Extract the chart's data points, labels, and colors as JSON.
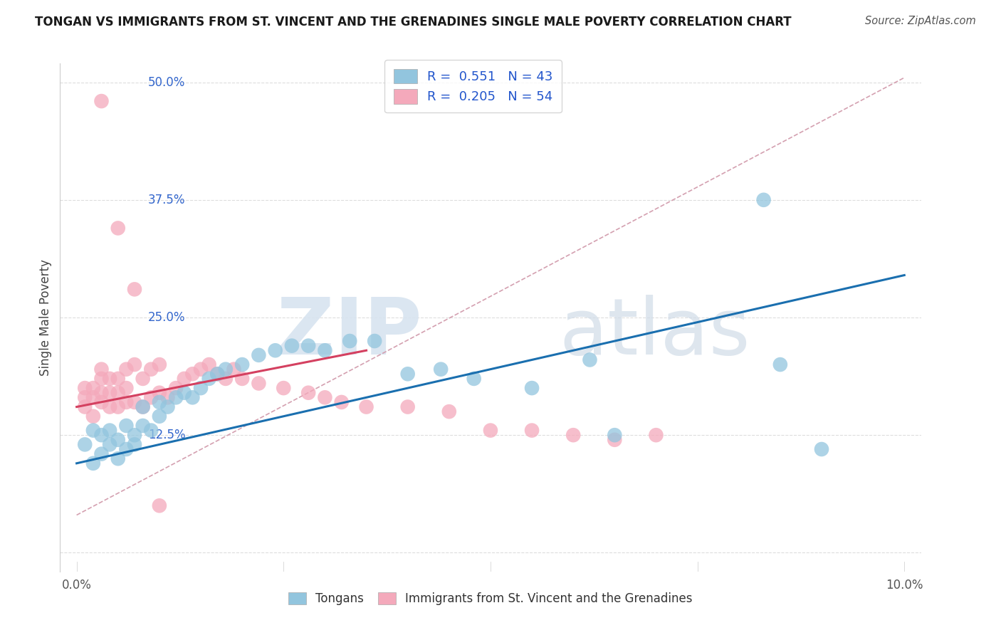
{
  "title": "TONGAN VS IMMIGRANTS FROM ST. VINCENT AND THE GRENADINES SINGLE MALE POVERTY CORRELATION CHART",
  "source": "Source: ZipAtlas.com",
  "ylabel": "Single Male Poverty",
  "y_ticks": [
    0.0,
    0.125,
    0.25,
    0.375,
    0.5
  ],
  "y_tick_labels": [
    "",
    "12.5%",
    "25.0%",
    "37.5%",
    "50.0%"
  ],
  "x_tick_labels": [
    "0.0%",
    "10.0%"
  ],
  "x_range": [
    0.0,
    0.1
  ],
  "y_range": [
    -0.02,
    0.52
  ],
  "legend1_label": "R =  0.551   N = 43",
  "legend2_label": "R =  0.205   N = 54",
  "legend_bottom1": "Tongans",
  "legend_bottom2": "Immigrants from St. Vincent and the Grenadines",
  "watermark_zip": "ZIP",
  "watermark_atlas": "atlas",
  "blue_color": "#92c5de",
  "pink_color": "#f4a9bb",
  "blue_line_color": "#1a6faf",
  "pink_line_color": "#d44060",
  "dashed_line_color": "#d4a0b0",
  "grid_color": "#dddddd",
  "blue_line_x": [
    0.0,
    0.1
  ],
  "blue_line_y": [
    0.095,
    0.295
  ],
  "pink_line_x": [
    0.0,
    0.035
  ],
  "pink_line_y": [
    0.155,
    0.215
  ],
  "dashed_line_x": [
    0.0,
    0.1
  ],
  "dashed_line_y": [
    0.04,
    0.505
  ],
  "tongan_x": [
    0.001,
    0.002,
    0.002,
    0.003,
    0.003,
    0.004,
    0.004,
    0.005,
    0.005,
    0.006,
    0.006,
    0.007,
    0.007,
    0.008,
    0.008,
    0.009,
    0.01,
    0.01,
    0.011,
    0.012,
    0.013,
    0.014,
    0.015,
    0.016,
    0.017,
    0.018,
    0.02,
    0.022,
    0.024,
    0.026,
    0.028,
    0.03,
    0.033,
    0.036,
    0.04,
    0.044,
    0.048,
    0.055,
    0.062,
    0.065,
    0.083,
    0.085,
    0.09
  ],
  "tongan_y": [
    0.115,
    0.095,
    0.13,
    0.105,
    0.125,
    0.115,
    0.13,
    0.1,
    0.12,
    0.11,
    0.135,
    0.115,
    0.125,
    0.135,
    0.155,
    0.13,
    0.145,
    0.16,
    0.155,
    0.165,
    0.17,
    0.165,
    0.175,
    0.185,
    0.19,
    0.195,
    0.2,
    0.21,
    0.215,
    0.22,
    0.22,
    0.215,
    0.225,
    0.225,
    0.19,
    0.195,
    0.185,
    0.175,
    0.205,
    0.125,
    0.375,
    0.2,
    0.11
  ],
  "svg_x": [
    0.001,
    0.001,
    0.001,
    0.002,
    0.002,
    0.002,
    0.003,
    0.003,
    0.003,
    0.003,
    0.004,
    0.004,
    0.004,
    0.005,
    0.005,
    0.005,
    0.006,
    0.006,
    0.006,
    0.007,
    0.007,
    0.008,
    0.008,
    0.009,
    0.009,
    0.01,
    0.01,
    0.011,
    0.012,
    0.013,
    0.014,
    0.015,
    0.016,
    0.017,
    0.018,
    0.019,
    0.02,
    0.022,
    0.025,
    0.028,
    0.03,
    0.032,
    0.035,
    0.04,
    0.045,
    0.05,
    0.055,
    0.06,
    0.065,
    0.07,
    0.003,
    0.005,
    0.007,
    0.01
  ],
  "svg_y": [
    0.155,
    0.165,
    0.175,
    0.145,
    0.165,
    0.175,
    0.16,
    0.17,
    0.185,
    0.195,
    0.155,
    0.17,
    0.185,
    0.155,
    0.17,
    0.185,
    0.16,
    0.175,
    0.195,
    0.16,
    0.2,
    0.155,
    0.185,
    0.165,
    0.195,
    0.17,
    0.2,
    0.165,
    0.175,
    0.185,
    0.19,
    0.195,
    0.2,
    0.19,
    0.185,
    0.195,
    0.185,
    0.18,
    0.175,
    0.17,
    0.165,
    0.16,
    0.155,
    0.155,
    0.15,
    0.13,
    0.13,
    0.125,
    0.12,
    0.125,
    0.48,
    0.345,
    0.28,
    0.05
  ]
}
